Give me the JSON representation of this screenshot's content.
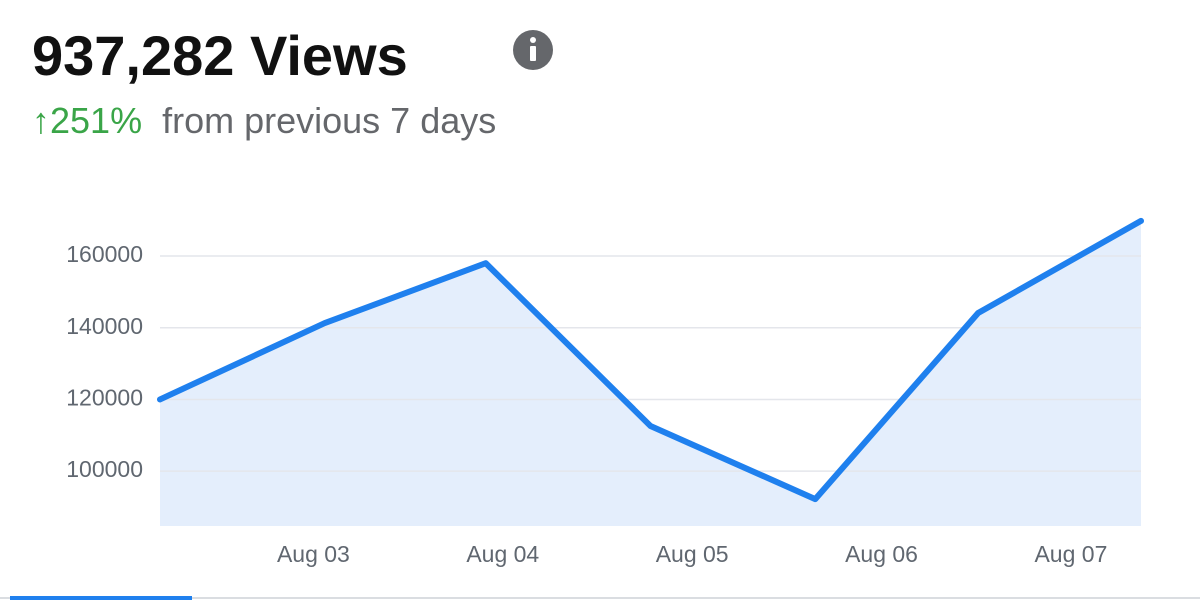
{
  "header": {
    "title": "937,282 Views",
    "change": "↑251%",
    "change_text": "from previous 7 days"
  },
  "chart_data": {
    "type": "line",
    "x": [
      2.19,
      3.06,
      3.91,
      4.78,
      5.65,
      6.51,
      7.37
    ],
    "series": [
      {
        "color": "#1f80ee",
        "values": [
          120000,
          141300,
          158000,
          112600,
          92200,
          144100,
          169800
        ]
      }
    ],
    "xlim": [
      2.19,
      7.37
    ],
    "xticks": [
      {
        "value": 3,
        "label": "Aug 03"
      },
      {
        "value": 4,
        "label": "Aug 04"
      },
      {
        "value": 5,
        "label": "Aug 05"
      },
      {
        "value": 6,
        "label": "Aug 06"
      },
      {
        "value": 7,
        "label": "Aug 07"
      }
    ],
    "ylim": [
      84700,
      172000
    ],
    "yticks": [
      100000,
      120000,
      140000,
      160000
    ],
    "grid": true,
    "area": true
  }
}
